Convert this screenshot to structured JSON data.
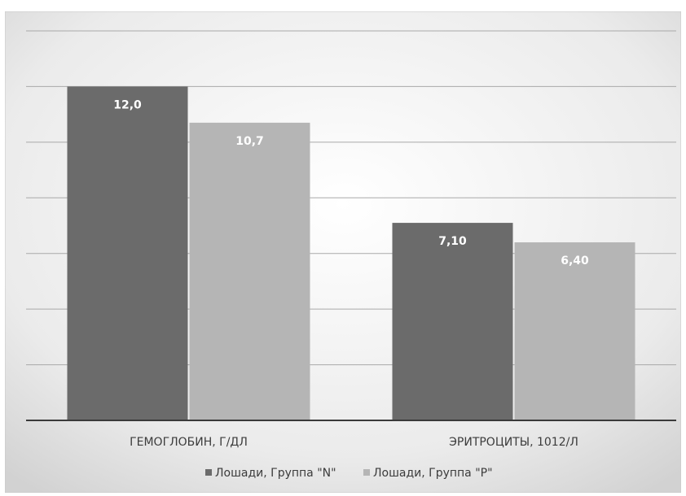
{
  "colors": {
    "series_n": "#6b6b6b",
    "series_p": "#b5b5b5",
    "grid": "#a9a9a9",
    "axis": "#3a3a3a",
    "label_on_bar": "#ffffff",
    "text": "#3c3c3c"
  },
  "chart_data": {
    "type": "bar",
    "categories": [
      "ГЕМОГЛОБИН, Г/ДЛ",
      "ЭРИТРОЦИТЫ, 1012/Л"
    ],
    "series": [
      {
        "name": "Лошади, Группа \"N\"",
        "values": [
          12.0,
          7.1
        ],
        "labels": [
          "12,0",
          "7,10"
        ]
      },
      {
        "name": "Лошади, Группа \"P\"",
        "values": [
          10.7,
          6.4
        ],
        "labels": [
          "10,7",
          "6,40"
        ]
      }
    ],
    "ylim": [
      0,
      14
    ],
    "grid": true,
    "legend": "bottom"
  }
}
